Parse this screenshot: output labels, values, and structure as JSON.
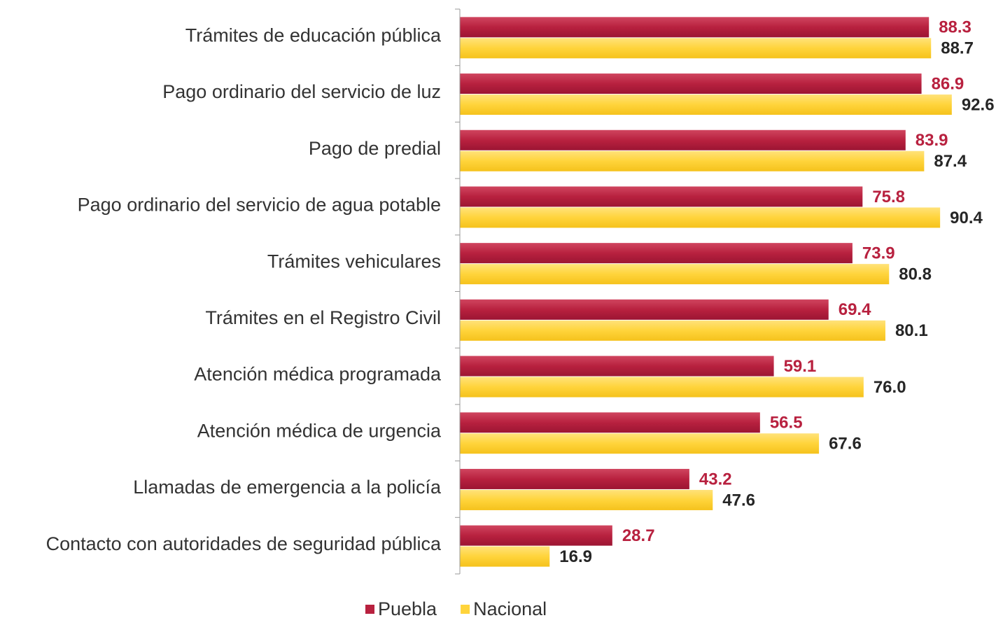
{
  "chart_data": {
    "type": "bar",
    "orientation": "horizontal",
    "categories": [
      "Trámites de educación pública",
      "Pago ordinario del servicio de luz",
      "Pago de predial",
      "Pago ordinario del servicio de agua potable",
      "Trámites vehiculares",
      "Trámites en el Registro Civil",
      "Atención médica programada",
      "Atención médica de urgencia",
      "Llamadas de emergencia a la policía",
      "Contacto con autoridades de seguridad pública"
    ],
    "series": [
      {
        "name": "Puebla",
        "color": "#b8213f",
        "label_color": "#b8213f",
        "values": [
          88.3,
          86.9,
          83.9,
          75.8,
          73.9,
          69.4,
          59.1,
          56.5,
          43.2,
          28.7
        ],
        "value_labels": [
          "88.3",
          "86.9",
          "83.9",
          "75.8",
          "73.9",
          "69.4",
          "59.1",
          "56.5",
          "43.2",
          "28.7"
        ]
      },
      {
        "name": "Nacional",
        "color": "#ffd43b",
        "label_color": "#262626",
        "values": [
          88.7,
          92.6,
          87.4,
          90.4,
          80.8,
          80.1,
          76.0,
          67.6,
          47.6,
          16.9
        ],
        "value_labels": [
          "88.7",
          "92.6",
          "87.4",
          "90.4",
          "80.8",
          "80.1",
          "76.0",
          "67.6",
          "47.6",
          "16.9"
        ]
      }
    ],
    "xlim": [
      0,
      100
    ],
    "legend": "bottom"
  }
}
